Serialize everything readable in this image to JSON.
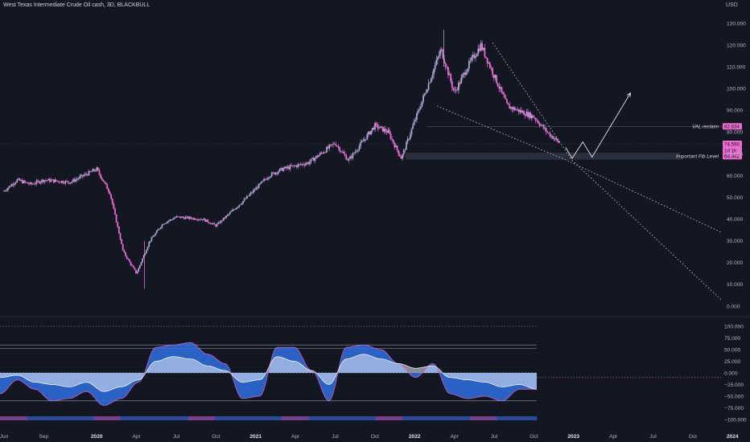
{
  "header": {
    "title": "West Texas Intermediate Crude Oil cash, 3D, BLACKBULL",
    "currency": "USD"
  },
  "colors": {
    "background": "#131722",
    "candle_up": "#a5a8c9",
    "candle_down": "#f06bd0",
    "label_badge": "#f06bd0",
    "fib_zone": "#2e323f",
    "osc_blue": "#2f6fe0",
    "osc_white": "#e8ecf5",
    "osc_pink": "#d05bbd"
  },
  "chart_data": [
    {
      "type": "candlestick",
      "title": "West Texas Intermediate Crude Oil cash, 3D, BLACKBULL",
      "ylabel": "USD",
      "ylim": [
        0,
        130
      ],
      "y_ticks": [
        "130.000",
        "120.000",
        "110.000",
        "100.000",
        "90.000",
        "80.000",
        "70.000",
        "60.000",
        "50.000",
        "40.000",
        "30.000",
        "20.000",
        "10.000",
        "0.000"
      ],
      "x_ticks": [
        "Jun",
        "Sep",
        "2020",
        "Apr",
        "Jul",
        "Oct",
        "2021",
        "Apr",
        "Jul",
        "Oct",
        "2022",
        "Apr",
        "Jul",
        "Oct",
        "2023",
        "Apr",
        "Jul",
        "Oct",
        "2024"
      ],
      "price_path": [
        {
          "x": "2019-06",
          "y": 53
        },
        {
          "x": "2019-07",
          "y": 58
        },
        {
          "x": "2019-08",
          "y": 56
        },
        {
          "x": "2019-09",
          "y": 58
        },
        {
          "x": "2019-11",
          "y": 57
        },
        {
          "x": "2020-01",
          "y": 63
        },
        {
          "x": "2020-02",
          "y": 52
        },
        {
          "x": "2020-03",
          "y": 25
        },
        {
          "x": "2020-04",
          "y": 15
        },
        {
          "x": "2020-05",
          "y": 30
        },
        {
          "x": "2020-06",
          "y": 38
        },
        {
          "x": "2020-07",
          "y": 41
        },
        {
          "x": "2020-09",
          "y": 40
        },
        {
          "x": "2020-10",
          "y": 37
        },
        {
          "x": "2020-12",
          "y": 48
        },
        {
          "x": "2021-02",
          "y": 60
        },
        {
          "x": "2021-03",
          "y": 63
        },
        {
          "x": "2021-05",
          "y": 66
        },
        {
          "x": "2021-07",
          "y": 75
        },
        {
          "x": "2021-08",
          "y": 67
        },
        {
          "x": "2021-10",
          "y": 83
        },
        {
          "x": "2021-11",
          "y": 80
        },
        {
          "x": "2021-12",
          "y": 68
        },
        {
          "x": "2022-01",
          "y": 85
        },
        {
          "x": "2022-03",
          "y": 118
        },
        {
          "x": "2022-04",
          "y": 98
        },
        {
          "x": "2022-05",
          "y": 110
        },
        {
          "x": "2022-06",
          "y": 120
        },
        {
          "x": "2022-08",
          "y": 92
        },
        {
          "x": "2022-10",
          "y": 87
        },
        {
          "x": "2022-11",
          "y": 80
        },
        {
          "x": "2022-12",
          "y": 74.59
        }
      ],
      "labels": [
        {
          "text": "VAL reclaim",
          "value": "82.634"
        },
        {
          "text": "",
          "value": "74.590"
        },
        {
          "text": "",
          "value": "1d 1h"
        },
        {
          "text": "Important Fib Level",
          "value": "68.942"
        }
      ],
      "annotations": [
        "falling wedge (dotted)",
        "zigzag projection arrow"
      ],
      "grid": false
    },
    {
      "type": "area",
      "title": "",
      "ylim": [
        -100,
        100
      ],
      "y_ticks": [
        "100.000",
        "75.000",
        "50.000",
        "25.000",
        "0.000",
        "−25.000",
        "−50.000",
        "−75.000",
        "−100.000"
      ],
      "levels": [
        100,
        60,
        53,
        0,
        -60
      ],
      "series": [
        {
          "values": [
            -45,
            -15,
            -35,
            -60,
            -55,
            -40,
            -70,
            -55,
            -20,
            55,
            60,
            65,
            40,
            20,
            -55,
            -50,
            55,
            55,
            5,
            -60,
            55,
            60,
            50,
            20,
            -10,
            20,
            -45,
            -55,
            -50,
            -60,
            -35,
            -35
          ]
        },
        {
          "values": [
            -10,
            -5,
            -20,
            -25,
            -30,
            -20,
            -40,
            -30,
            -15,
            25,
            35,
            30,
            15,
            5,
            -20,
            -15,
            35,
            25,
            5,
            -25,
            30,
            40,
            30,
            20,
            10,
            15,
            -10,
            -15,
            -20,
            -30,
            -25,
            -35
          ]
        }
      ]
    }
  ]
}
